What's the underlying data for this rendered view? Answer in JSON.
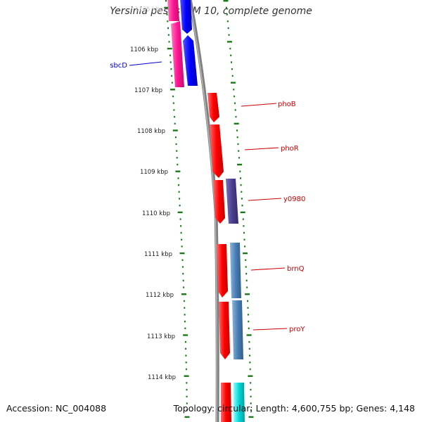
{
  "title": "Yersinia pestis KIM 10, complete genome",
  "accession": "Accession: NC_004088",
  "summary": "Topology: circular; Length: 4,600,755 bp; Genes: 4,148",
  "top_partial_label": "1105 kbp",
  "kbp_labels": [
    "1106 kbp",
    "1107 kbp",
    "1108 kbp",
    "1109 kbp",
    "1110 kbp",
    "1111 kbp",
    "1112 kbp",
    "1113 kbp",
    "1114 kbp"
  ],
  "genes": [
    {
      "name": "sbcD",
      "color": "#0000cc"
    },
    {
      "name": "phoB",
      "color": "#cc0000"
    },
    {
      "name": "phoR",
      "color": "#cc0000"
    },
    {
      "name": "y0980",
      "color": "#cc0000"
    },
    {
      "name": "brnQ",
      "color": "#cc0000"
    },
    {
      "name": "proY",
      "color": "#cc0000"
    }
  ],
  "colors": {
    "red": "#ff0000",
    "blue": "#0000ff",
    "magenta": "#ff1493",
    "purple": "#4b3f8f",
    "steelblue": "#4a7fb5",
    "cyan": "#00d5d5",
    "tick_green": "#1a7a1a",
    "backbone": "#808080"
  }
}
